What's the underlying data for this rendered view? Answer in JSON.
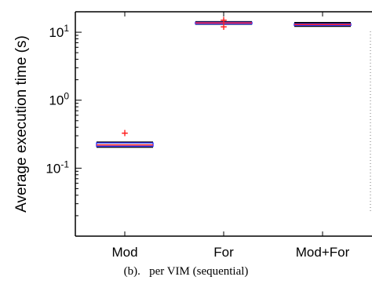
{
  "caption": "(b).   per VIM (sequential)",
  "chart_data": {
    "type": "box",
    "ylabel": "Average execution time (s)",
    "yscale": "log",
    "ylim": [
      0.01,
      20
    ],
    "yticks": [
      {
        "value": 10,
        "base": "10",
        "exp": "1"
      },
      {
        "value": 1,
        "base": "10",
        "exp": "0"
      },
      {
        "value": 0.1,
        "base": "10",
        "exp": "-1"
      }
    ],
    "categories": [
      "Mod",
      "For",
      "Mod+For"
    ],
    "boxes": [
      {
        "category": "Mod",
        "whisker_low": 0.205,
        "q1": 0.21,
        "median": 0.22,
        "q3": 0.235,
        "whisker_high": 0.24,
        "outliers": [
          0.33
        ]
      },
      {
        "category": "For",
        "whisker_low": 13.2,
        "q1": 13.4,
        "median": 13.7,
        "q3": 14.0,
        "whisker_high": 14.2,
        "outliers": [
          12.0,
          15.2
        ]
      },
      {
        "category": "Mod+For",
        "whisker_low": 12.3,
        "q1": 12.7,
        "median": 13.0,
        "q3": 13.3,
        "whisker_high": 13.8,
        "outliers": []
      }
    ],
    "colors": {
      "box": "#3c3cff",
      "median": "#ff2020",
      "outlier": "#ff2020",
      "axis": "#000000"
    }
  }
}
